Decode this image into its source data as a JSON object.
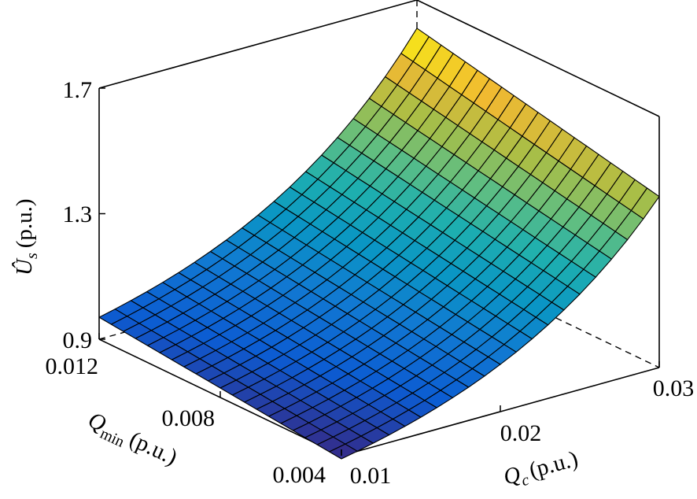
{
  "chart_data": {
    "type": "surface3d",
    "colormap": "parula",
    "x_axis": {
      "ticks": [
        "0.01",
        "0.02",
        "0.03"
      ],
      "tick_values": [
        0.01,
        0.02,
        0.03
      ],
      "range": [
        0.01,
        0.03
      ],
      "label_symbol": "Q",
      "label_subscript": "c",
      "label_unit": "(p.u.)"
    },
    "y_axis": {
      "ticks": [
        "0.004",
        "0.008",
        "0.012"
      ],
      "tick_values": [
        0.004,
        0.008,
        0.012
      ],
      "range": [
        0.004,
        0.012
      ],
      "label_symbol": "Q",
      "label_subscript": "min",
      "label_unit": "(p.u.)"
    },
    "z_axis": {
      "ticks": [
        "0.9",
        "1.3",
        "1.7"
      ],
      "tick_values": [
        0.9,
        1.3,
        1.7
      ],
      "range": [
        0.9,
        1.7
      ],
      "label_symbol": "Û",
      "label_subscript": "s",
      "label_unit": "(p.u.)"
    },
    "grid": false,
    "surface": {
      "grid_size": [
        21,
        21
      ],
      "corner_values": {
        "qc_0.01_qmin_0.012": 0.97,
        "qc_0.01_qmin_0.004": 0.89,
        "qc_0.03_qmin_0.012": 1.61,
        "qc_0.03_qmin_0.004": 1.445
      },
      "curvature": 1.8
    }
  }
}
